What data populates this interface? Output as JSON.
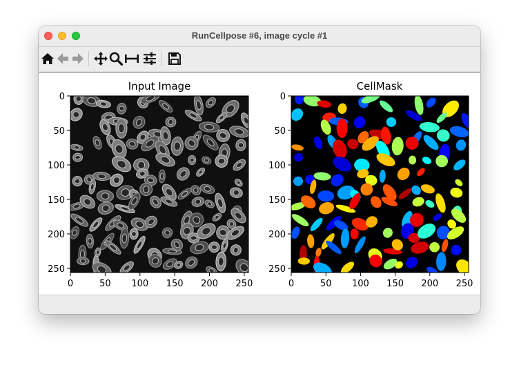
{
  "window": {
    "title": "RunCellpose #6, image cycle #1"
  },
  "toolbar": {
    "buttons": [
      {
        "name": "home-icon"
      },
      {
        "name": "back-icon"
      },
      {
        "name": "forward-icon"
      },
      {
        "name": "pan-icon"
      },
      {
        "name": "zoom-icon"
      },
      {
        "name": "subplots-icon"
      },
      {
        "name": "configure-icon"
      },
      {
        "name": "save-icon"
      }
    ]
  },
  "figure": {
    "panels": [
      {
        "title": "Input Image",
        "x_ticks": [
          "0",
          "50",
          "100",
          "150",
          "200",
          "250"
        ],
        "y_ticks": [
          "0",
          "50",
          "100",
          "150",
          "200",
          "250"
        ],
        "colormap": "gray"
      },
      {
        "title": "CellMask",
        "x_ticks": [
          "0",
          "50",
          "100",
          "150",
          "200",
          "250"
        ],
        "y_ticks": [
          "0",
          "50",
          "100",
          "150",
          "200",
          "250"
        ],
        "colormap": "jet"
      }
    ]
  },
  "colors": {
    "close": "#fe5f57",
    "minimize": "#febc2e",
    "maximize": "#28c840"
  }
}
